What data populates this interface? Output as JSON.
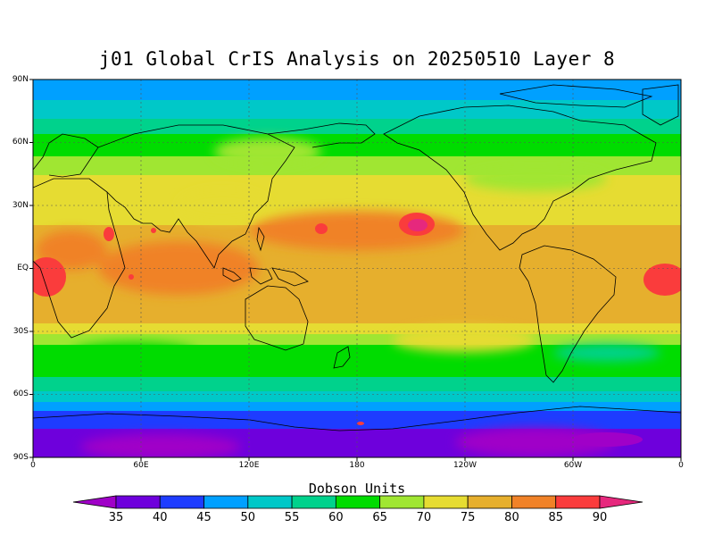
{
  "title": "j01 Global CrIS Analysis on 20250510 Layer 8",
  "lat_labels": [
    "90N",
    "60N",
    "30N",
    "EQ",
    "30S",
    "60S",
    "90S"
  ],
  "lon_labels": [
    "0",
    "60E",
    "120E",
    "180",
    "120W",
    "60W",
    "0"
  ],
  "colorbar": {
    "title": "Dobson Units",
    "levels": [
      "35",
      "40",
      "45",
      "50",
      "55",
      "60",
      "65",
      "70",
      "75",
      "80",
      "85",
      "90"
    ],
    "colors": [
      "#a000c8",
      "#6e00dc",
      "#1e3cff",
      "#00a0ff",
      "#00c8c8",
      "#00d28c",
      "#00dc00",
      "#a0e632",
      "#e6dc32",
      "#e6af2d",
      "#f08228",
      "#fa3c3c",
      "#e6287d"
    ]
  }
}
